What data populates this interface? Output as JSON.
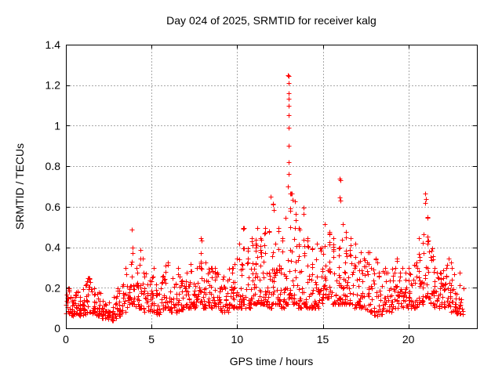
{
  "page": {
    "background": "#ffffff"
  },
  "chart_data": {
    "type": "scatter",
    "title": "Day 024 of 2025, SRMTID for receiver kalg",
    "xlabel": "GPS time / hours",
    "ylabel": "SRMTID / TECUs",
    "xlim": [
      0,
      24
    ],
    "ylim": [
      0,
      1.4
    ],
    "xticks": [
      0,
      5,
      10,
      15,
      20
    ],
    "xtick_labels": [
      "0",
      "5",
      "10",
      "15",
      "20"
    ],
    "yticks": [
      0,
      0.2,
      0.4,
      0.6,
      0.8,
      1,
      1.2,
      1.4
    ],
    "ytick_labels": [
      "0",
      "0.2",
      "0.4",
      "0.6",
      "0.8",
      "1",
      "1.2",
      "1.4"
    ],
    "grid": true,
    "grid_style": "dashed",
    "grid_color": "#a8a8a8",
    "axis_color": "#000000",
    "marker": "plus",
    "marker_color": "#ff0000",
    "marker_size_px": 7,
    "x_data_range": [
      0.05,
      23.1
    ],
    "bin_width_hours": 0.25,
    "density_bins_format": [
      "x_start",
      "y_min",
      "y_max",
      "count"
    ],
    "density_bins": [
      [
        0.0,
        0.07,
        0.2,
        18
      ],
      [
        0.25,
        0.06,
        0.16,
        16
      ],
      [
        0.5,
        0.07,
        0.18,
        16
      ],
      [
        0.75,
        0.06,
        0.16,
        16
      ],
      [
        1.0,
        0.07,
        0.22,
        16
      ],
      [
        1.25,
        0.08,
        0.25,
        16
      ],
      [
        1.5,
        0.07,
        0.2,
        16
      ],
      [
        1.75,
        0.06,
        0.18,
        16
      ],
      [
        2.0,
        0.05,
        0.14,
        14
      ],
      [
        2.25,
        0.04,
        0.12,
        14
      ],
      [
        2.5,
        0.04,
        0.13,
        14
      ],
      [
        2.75,
        0.05,
        0.16,
        14
      ],
      [
        3.0,
        0.06,
        0.2,
        14
      ],
      [
        3.25,
        0.08,
        0.22,
        14
      ],
      [
        3.5,
        0.1,
        0.3,
        16
      ],
      [
        3.75,
        0.12,
        0.49,
        20
      ],
      [
        4.0,
        0.1,
        0.3,
        16
      ],
      [
        4.25,
        0.1,
        0.39,
        16
      ],
      [
        4.5,
        0.08,
        0.28,
        14
      ],
      [
        4.75,
        0.08,
        0.24,
        14
      ],
      [
        5.0,
        0.08,
        0.3,
        14
      ],
      [
        5.25,
        0.07,
        0.22,
        14
      ],
      [
        5.5,
        0.08,
        0.26,
        14
      ],
      [
        5.75,
        0.1,
        0.33,
        16
      ],
      [
        6.0,
        0.08,
        0.25,
        14
      ],
      [
        6.25,
        0.07,
        0.22,
        14
      ],
      [
        6.5,
        0.08,
        0.3,
        16
      ],
      [
        6.75,
        0.08,
        0.24,
        14
      ],
      [
        7.0,
        0.1,
        0.28,
        16
      ],
      [
        7.25,
        0.1,
        0.32,
        16
      ],
      [
        7.5,
        0.1,
        0.3,
        16
      ],
      [
        7.75,
        0.12,
        0.45,
        18
      ],
      [
        8.0,
        0.1,
        0.33,
        16
      ],
      [
        8.25,
        0.1,
        0.3,
        16
      ],
      [
        8.5,
        0.1,
        0.3,
        16
      ],
      [
        8.75,
        0.1,
        0.28,
        14
      ],
      [
        9.0,
        0.08,
        0.26,
        14
      ],
      [
        9.25,
        0.08,
        0.24,
        14
      ],
      [
        9.5,
        0.1,
        0.3,
        16
      ],
      [
        9.75,
        0.1,
        0.35,
        16
      ],
      [
        10.0,
        0.1,
        0.42,
        18
      ],
      [
        10.25,
        0.12,
        0.5,
        18
      ],
      [
        10.5,
        0.1,
        0.4,
        18
      ],
      [
        10.75,
        0.12,
        0.45,
        18
      ],
      [
        11.0,
        0.12,
        0.5,
        20
      ],
      [
        11.25,
        0.12,
        0.45,
        20
      ],
      [
        11.5,
        0.12,
        0.5,
        20
      ],
      [
        11.75,
        0.1,
        0.48,
        20
      ],
      [
        12.0,
        0.12,
        0.62,
        20
      ],
      [
        12.25,
        0.12,
        0.5,
        20
      ],
      [
        12.5,
        0.1,
        0.45,
        18
      ],
      [
        12.75,
        0.12,
        0.55,
        18
      ],
      [
        13.0,
        0.15,
        0.67,
        20
      ],
      [
        13.25,
        0.12,
        0.63,
        18
      ],
      [
        13.5,
        0.1,
        0.5,
        18
      ],
      [
        13.75,
        0.12,
        0.6,
        18
      ],
      [
        14.0,
        0.1,
        0.45,
        16
      ],
      [
        14.25,
        0.1,
        0.4,
        16
      ],
      [
        14.5,
        0.1,
        0.42,
        16
      ],
      [
        14.75,
        0.12,
        0.4,
        16
      ],
      [
        15.0,
        0.15,
        0.52,
        18
      ],
      [
        15.25,
        0.15,
        0.48,
        18
      ],
      [
        15.5,
        0.12,
        0.45,
        18
      ],
      [
        15.75,
        0.12,
        0.4,
        18
      ],
      [
        16.0,
        0.12,
        0.52,
        20
      ],
      [
        16.25,
        0.12,
        0.48,
        18
      ],
      [
        16.5,
        0.12,
        0.45,
        16
      ],
      [
        16.75,
        0.1,
        0.42,
        16
      ],
      [
        17.0,
        0.1,
        0.38,
        16
      ],
      [
        17.25,
        0.1,
        0.35,
        14
      ],
      [
        17.5,
        0.08,
        0.38,
        14
      ],
      [
        17.75,
        0.08,
        0.3,
        14
      ],
      [
        18.0,
        0.06,
        0.35,
        14
      ],
      [
        18.25,
        0.06,
        0.28,
        14
      ],
      [
        18.5,
        0.08,
        0.3,
        14
      ],
      [
        18.75,
        0.08,
        0.28,
        14
      ],
      [
        19.0,
        0.08,
        0.3,
        14
      ],
      [
        19.25,
        0.1,
        0.35,
        14
      ],
      [
        19.5,
        0.1,
        0.3,
        14
      ],
      [
        19.75,
        0.1,
        0.28,
        14
      ],
      [
        20.0,
        0.1,
        0.3,
        16
      ],
      [
        20.25,
        0.1,
        0.33,
        16
      ],
      [
        20.5,
        0.12,
        0.45,
        16
      ],
      [
        20.75,
        0.12,
        0.47,
        16
      ],
      [
        21.0,
        0.15,
        0.55,
        18
      ],
      [
        21.25,
        0.12,
        0.4,
        16
      ],
      [
        21.5,
        0.1,
        0.3,
        16
      ],
      [
        21.75,
        0.1,
        0.28,
        16
      ],
      [
        22.0,
        0.1,
        0.3,
        16
      ],
      [
        22.25,
        0.1,
        0.35,
        16
      ],
      [
        22.5,
        0.08,
        0.3,
        16
      ],
      [
        22.75,
        0.07,
        0.28,
        16
      ],
      [
        23.0,
        0.07,
        0.2,
        10
      ]
    ],
    "outlier_points": [
      [
        12.98,
        1.25
      ],
      [
        13.02,
        1.245
      ],
      [
        13.0,
        1.21
      ],
      [
        12.99,
        1.16
      ],
      [
        13.03,
        1.135
      ],
      [
        13.0,
        1.1
      ],
      [
        13.01,
        1.05
      ],
      [
        12.99,
        0.99
      ],
      [
        13.02,
        0.9
      ],
      [
        13.0,
        0.82
      ],
      [
        13.01,
        0.76
      ],
      [
        12.97,
        0.7
      ],
      [
        13.18,
        0.665
      ],
      [
        13.22,
        0.635
      ],
      [
        11.97,
        0.65
      ],
      [
        12.08,
        0.61
      ],
      [
        15.98,
        0.74
      ],
      [
        16.02,
        0.73
      ],
      [
        16.0,
        0.645
      ],
      [
        16.03,
        0.63
      ],
      [
        20.99,
        0.665
      ],
      [
        21.03,
        0.64
      ],
      [
        20.97,
        0.62
      ]
    ]
  }
}
